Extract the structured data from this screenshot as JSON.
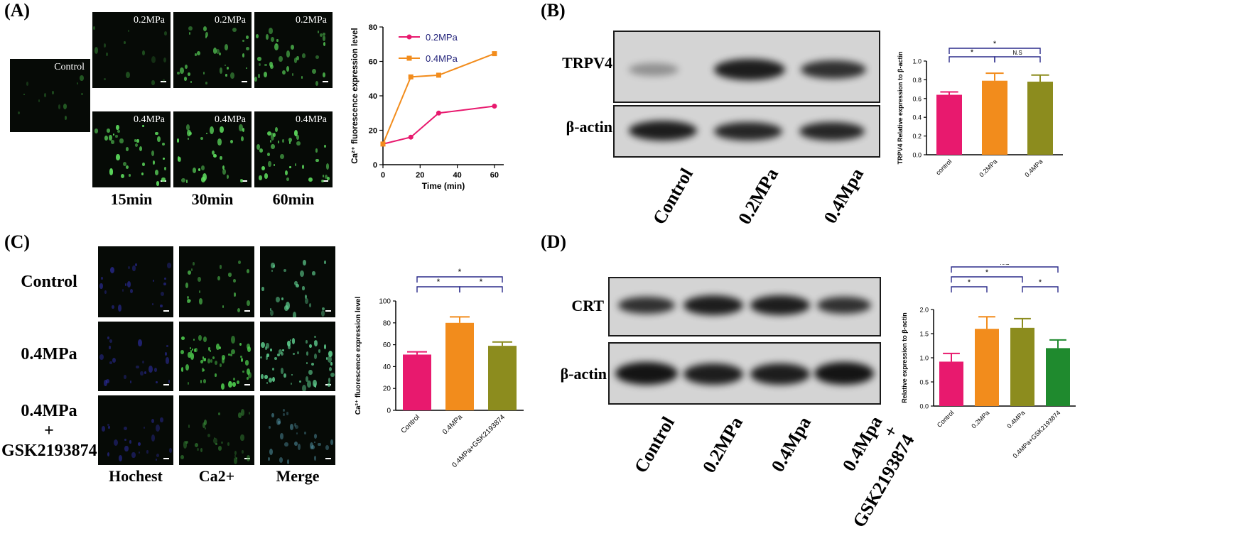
{
  "panels": {
    "A": {
      "letter": "(A)",
      "micro_labels": {
        "control": "Control",
        "p02": "0.2MPa",
        "p04": "0.4MPa"
      },
      "time_labels": [
        "15min",
        "30min",
        "60min"
      ],
      "chart_data": {
        "type": "line",
        "x": [
          0,
          15,
          30,
          60
        ],
        "series": [
          {
            "name": "0.2MPa",
            "values": [
              12,
              16,
              30,
              34
            ],
            "color": "#e8196e"
          },
          {
            "name": "0.4MPa",
            "values": [
              12,
              51,
              52,
              64.5
            ],
            "color": "#f28c1c"
          }
        ],
        "xlabel": "Time (min)",
        "ylabel": "Ca²⁺ fluorescence expression level",
        "xlim": [
          0,
          65
        ],
        "ylim": [
          0,
          80
        ],
        "xticks": [
          0,
          20,
          40,
          60
        ],
        "yticks": [
          0,
          20,
          40,
          60,
          80
        ],
        "legend": "top-left"
      }
    },
    "B": {
      "letter": "(B)",
      "blot_labels": [
        "TRPV4",
        "β-actin"
      ],
      "lane_labels": [
        "Control",
        "0.2MPa",
        "0.4Mpa"
      ],
      "chart_data": {
        "type": "bar",
        "categories": [
          "control",
          "0.2MPa",
          "0.4MPa"
        ],
        "values": [
          0.64,
          0.79,
          0.78
        ],
        "errors": [
          0.03,
          0.08,
          0.07
        ],
        "colors": [
          "#e8196e",
          "#f28c1c",
          "#8c8c1e"
        ],
        "ylabel": "TRPV4 Relative expression to β-actin",
        "ylim": [
          0,
          1.0
        ],
        "yticks": [
          0.0,
          0.2,
          0.4,
          0.6,
          0.8,
          1.0
        ],
        "annotations": [
          {
            "from": 0,
            "to": 1,
            "label": "*"
          },
          {
            "from": 1,
            "to": 2,
            "label": "N.S"
          },
          {
            "from": 0,
            "to": 2,
            "label": "*"
          }
        ]
      }
    },
    "C": {
      "letter": "(C)",
      "row_labels": [
        "Control",
        "0.4MPa",
        "0.4MPa\n+\nGSK2193874"
      ],
      "column_labels": [
        "Hochest",
        "Ca2+",
        "Merge"
      ],
      "chart_data": {
        "type": "bar",
        "categories": [
          "Control",
          "0.4MPa",
          "0.4MPa+GSK2193874"
        ],
        "values": [
          51,
          80,
          59
        ],
        "errors": [
          2.5,
          5.5,
          3.5
        ],
        "colors": [
          "#e8196e",
          "#f28c1c",
          "#8c8c1e"
        ],
        "ylabel": "Ca²⁺ fluorescence expression level",
        "ylim": [
          0,
          100
        ],
        "yticks": [
          0,
          20,
          40,
          60,
          80,
          100
        ],
        "annotations": [
          {
            "from": 0,
            "to": 1,
            "label": "*"
          },
          {
            "from": 1,
            "to": 2,
            "label": "*"
          },
          {
            "from": 0,
            "to": 2,
            "label": "*"
          }
        ]
      }
    },
    "D": {
      "letter": "(D)",
      "blot_labels": [
        "CRT",
        "β-actin"
      ],
      "lane_labels": [
        "Control",
        "0.2MPa",
        "0.4Mpa",
        "0.4Mpa\n+\nGSK2193874"
      ],
      "chart_data": {
        "type": "bar",
        "categories": [
          "Control",
          "0.2MPa",
          "0.4MPa",
          "0.4MPa+GSK2193874"
        ],
        "values": [
          0.92,
          1.6,
          1.62,
          1.2
        ],
        "errors": [
          0.17,
          0.25,
          0.19,
          0.17
        ],
        "colors": [
          "#e8196e",
          "#f28c1c",
          "#8c8c1e",
          "#1f8a2e"
        ],
        "ylabel": "Relative expression to β-actin",
        "ylim": [
          0,
          2.0
        ],
        "yticks": [
          0.0,
          0.5,
          1.0,
          1.5,
          2.0
        ],
        "annotations": [
          {
            "from": 0,
            "to": 1,
            "label": "*"
          },
          {
            "from": 2,
            "to": 3,
            "label": "*"
          },
          {
            "from": 0,
            "to": 2,
            "label": "*"
          },
          {
            "from": 0,
            "to": 3,
            "label": "N.S"
          }
        ]
      }
    }
  }
}
